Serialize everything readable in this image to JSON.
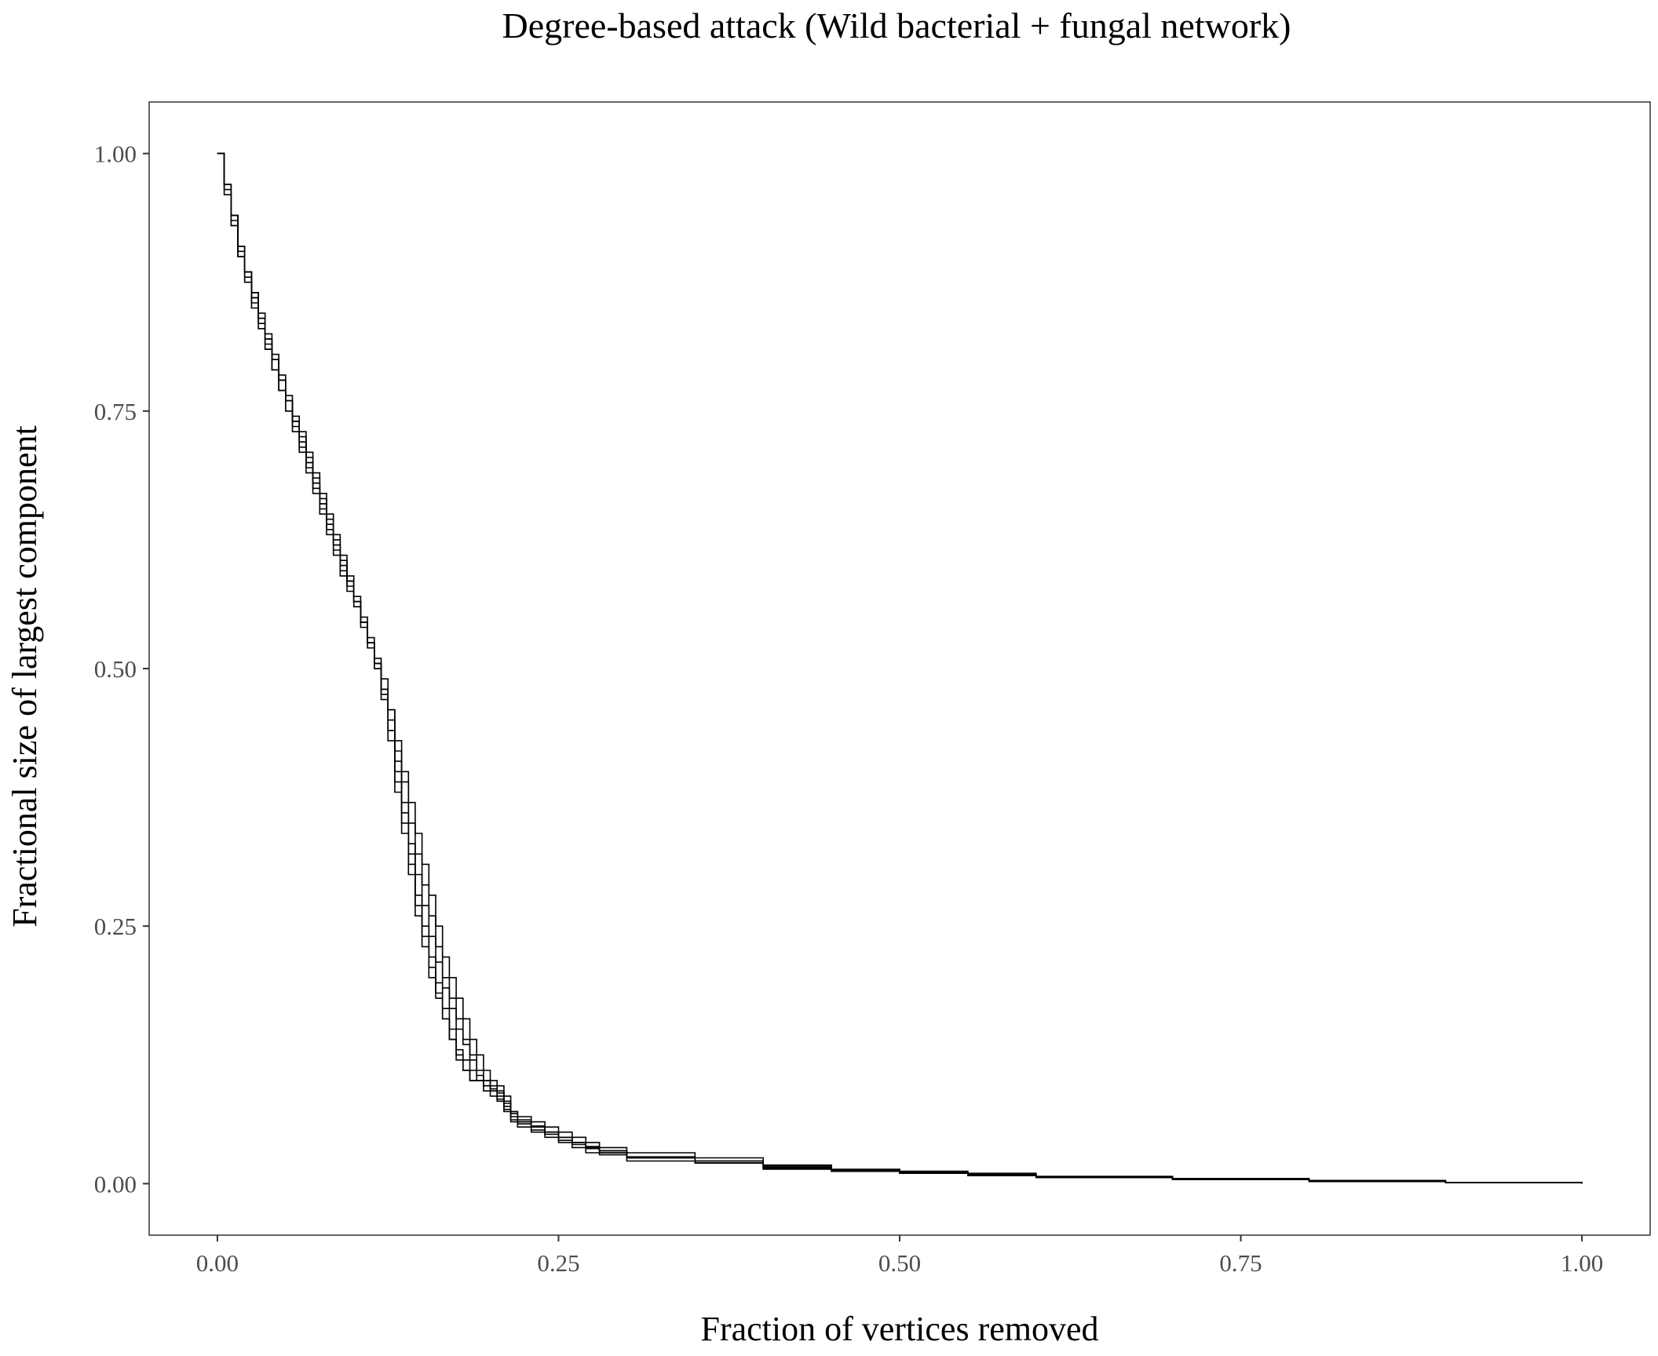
{
  "chart_data": {
    "type": "line",
    "title": "Degree-based attack (Wild bacterial + fungal network)",
    "xlabel": "Fraction of vertices removed",
    "ylabel": "Fractional size of largest component",
    "xlim": [
      -0.05,
      1.05
    ],
    "ylim": [
      -0.05,
      1.05
    ],
    "xticks": [
      0.0,
      0.25,
      0.5,
      0.75,
      1.0
    ],
    "xtick_labels": [
      "0.00",
      "0.25",
      "0.50",
      "0.75",
      "1.00"
    ],
    "yticks": [
      0.0,
      0.25,
      0.5,
      0.75,
      1.0
    ],
    "ytick_labels": [
      "0.00",
      "0.25",
      "0.50",
      "0.75",
      "1.00"
    ],
    "grid": false,
    "legend": "none",
    "line_color": "#000000",
    "series": [
      {
        "x": [
          0.0,
          0.005,
          0.01,
          0.015,
          0.02,
          0.025,
          0.03,
          0.035,
          0.04,
          0.045,
          0.05,
          0.055,
          0.06,
          0.065,
          0.07,
          0.075,
          0.08,
          0.085,
          0.09,
          0.095,
          0.1,
          0.105,
          0.11,
          0.115,
          0.12,
          0.125,
          0.13,
          0.135,
          0.14,
          0.145,
          0.15,
          0.155,
          0.16,
          0.165,
          0.17,
          0.175,
          0.18,
          0.185,
          0.19,
          0.195,
          0.2,
          0.205,
          0.21,
          0.215,
          0.22,
          0.23,
          0.24,
          0.25,
          0.26,
          0.27,
          0.28,
          0.3,
          0.35,
          0.4,
          0.45,
          0.5,
          0.55,
          0.6,
          0.7,
          0.8,
          0.9,
          1.0
        ],
        "y": [
          1.0,
          0.97,
          0.935,
          0.905,
          0.88,
          0.86,
          0.84,
          0.815,
          0.8,
          0.78,
          0.76,
          0.74,
          0.72,
          0.7,
          0.68,
          0.66,
          0.64,
          0.62,
          0.6,
          0.585,
          0.565,
          0.545,
          0.525,
          0.505,
          0.48,
          0.44,
          0.4,
          0.36,
          0.32,
          0.28,
          0.25,
          0.22,
          0.195,
          0.17,
          0.15,
          0.13,
          0.12,
          0.11,
          0.1,
          0.095,
          0.09,
          0.085,
          0.075,
          0.065,
          0.06,
          0.055,
          0.05,
          0.045,
          0.04,
          0.035,
          0.03,
          0.025,
          0.02,
          0.015,
          0.012,
          0.01,
          0.008,
          0.006,
          0.004,
          0.002,
          0.001,
          0.0
        ]
      },
      {
        "x": [
          0.0,
          0.005,
          0.01,
          0.015,
          0.02,
          0.025,
          0.03,
          0.035,
          0.04,
          0.045,
          0.05,
          0.055,
          0.06,
          0.065,
          0.07,
          0.075,
          0.08,
          0.085,
          0.09,
          0.095,
          0.1,
          0.105,
          0.11,
          0.115,
          0.12,
          0.125,
          0.13,
          0.135,
          0.14,
          0.145,
          0.15,
          0.155,
          0.16,
          0.165,
          0.17,
          0.175,
          0.18,
          0.185,
          0.19,
          0.195,
          0.2,
          0.205,
          0.21,
          0.215,
          0.22,
          0.23,
          0.24,
          0.25,
          0.26,
          0.27,
          0.28,
          0.3,
          0.35,
          0.4,
          0.45,
          0.5,
          0.55,
          0.6,
          0.7,
          0.8,
          0.9,
          1.0
        ],
        "y": [
          1.0,
          0.97,
          0.94,
          0.91,
          0.885,
          0.865,
          0.845,
          0.825,
          0.805,
          0.785,
          0.765,
          0.745,
          0.73,
          0.71,
          0.69,
          0.67,
          0.65,
          0.63,
          0.61,
          0.59,
          0.57,
          0.55,
          0.53,
          0.51,
          0.49,
          0.46,
          0.42,
          0.39,
          0.35,
          0.32,
          0.29,
          0.26,
          0.23,
          0.2,
          0.18,
          0.16,
          0.14,
          0.125,
          0.11,
          0.1,
          0.095,
          0.09,
          0.08,
          0.07,
          0.065,
          0.06,
          0.055,
          0.05,
          0.045,
          0.04,
          0.035,
          0.03,
          0.025,
          0.018,
          0.014,
          0.012,
          0.01,
          0.007,
          0.005,
          0.003,
          0.001,
          0.0
        ]
      },
      {
        "x": [
          0.0,
          0.005,
          0.01,
          0.015,
          0.02,
          0.025,
          0.03,
          0.035,
          0.04,
          0.045,
          0.05,
          0.055,
          0.06,
          0.065,
          0.07,
          0.075,
          0.08,
          0.085,
          0.09,
          0.095,
          0.1,
          0.105,
          0.11,
          0.115,
          0.12,
          0.125,
          0.13,
          0.135,
          0.14,
          0.145,
          0.15,
          0.155,
          0.16,
          0.165,
          0.17,
          0.175,
          0.18,
          0.185,
          0.19,
          0.195,
          0.2,
          0.205,
          0.21,
          0.215,
          0.22,
          0.23,
          0.24,
          0.25,
          0.26,
          0.27,
          0.28,
          0.3,
          0.35,
          0.4,
          0.45,
          0.5,
          0.55,
          0.6,
          0.7,
          0.8,
          0.9,
          1.0
        ],
        "y": [
          1.0,
          0.965,
          0.93,
          0.9,
          0.875,
          0.855,
          0.835,
          0.81,
          0.79,
          0.77,
          0.75,
          0.73,
          0.71,
          0.69,
          0.67,
          0.65,
          0.63,
          0.61,
          0.59,
          0.575,
          0.56,
          0.54,
          0.52,
          0.5,
          0.47,
          0.43,
          0.38,
          0.34,
          0.3,
          0.26,
          0.23,
          0.2,
          0.18,
          0.16,
          0.14,
          0.12,
          0.11,
          0.1,
          0.1,
          0.09,
          0.085,
          0.08,
          0.07,
          0.06,
          0.055,
          0.05,
          0.045,
          0.04,
          0.035,
          0.03,
          0.028,
          0.022,
          0.02,
          0.015,
          0.012,
          0.01,
          0.008,
          0.006,
          0.004,
          0.002,
          0.001,
          0.0
        ]
      },
      {
        "x": [
          0.0,
          0.005,
          0.01,
          0.015,
          0.02,
          0.025,
          0.03,
          0.035,
          0.04,
          0.045,
          0.05,
          0.055,
          0.06,
          0.065,
          0.07,
          0.075,
          0.08,
          0.085,
          0.09,
          0.095,
          0.1,
          0.105,
          0.11,
          0.115,
          0.12,
          0.125,
          0.13,
          0.135,
          0.14,
          0.145,
          0.15,
          0.155,
          0.16,
          0.165,
          0.17,
          0.175,
          0.18,
          0.185,
          0.19,
          0.195,
          0.2,
          0.205,
          0.21,
          0.215,
          0.22,
          0.23,
          0.24,
          0.25,
          0.26,
          0.27,
          0.28,
          0.3,
          0.35,
          0.4,
          0.45,
          0.5,
          0.55,
          0.6,
          0.7,
          0.8,
          0.9,
          1.0
        ],
        "y": [
          1.0,
          0.97,
          0.94,
          0.91,
          0.885,
          0.865,
          0.84,
          0.82,
          0.8,
          0.78,
          0.76,
          0.74,
          0.725,
          0.705,
          0.685,
          0.665,
          0.645,
          0.625,
          0.605,
          0.585,
          0.565,
          0.545,
          0.525,
          0.505,
          0.48,
          0.45,
          0.41,
          0.37,
          0.33,
          0.3,
          0.27,
          0.24,
          0.215,
          0.19,
          0.17,
          0.15,
          0.135,
          0.12,
          0.105,
          0.1,
          0.092,
          0.088,
          0.078,
          0.068,
          0.06,
          0.055,
          0.05,
          0.045,
          0.04,
          0.035,
          0.032,
          0.025,
          0.022,
          0.016,
          0.013,
          0.011,
          0.009,
          0.006,
          0.004,
          0.003,
          0.001,
          0.0
        ]
      },
      {
        "x": [
          0.0,
          0.005,
          0.01,
          0.015,
          0.02,
          0.025,
          0.03,
          0.035,
          0.04,
          0.045,
          0.05,
          0.055,
          0.06,
          0.065,
          0.07,
          0.075,
          0.08,
          0.085,
          0.09,
          0.095,
          0.1,
          0.105,
          0.11,
          0.115,
          0.12,
          0.125,
          0.13,
          0.135,
          0.14,
          0.145,
          0.15,
          0.155,
          0.16,
          0.165,
          0.17,
          0.175,
          0.18,
          0.185,
          0.19,
          0.195,
          0.2,
          0.205,
          0.21,
          0.215,
          0.22,
          0.23,
          0.24,
          0.25,
          0.26,
          0.27,
          0.28,
          0.3,
          0.35,
          0.4,
          0.45,
          0.5,
          0.55,
          0.6,
          0.7,
          0.8,
          0.9,
          1.0
        ],
        "y": [
          1.0,
          0.96,
          0.93,
          0.9,
          0.875,
          0.85,
          0.83,
          0.81,
          0.79,
          0.77,
          0.75,
          0.735,
          0.715,
          0.695,
          0.675,
          0.655,
          0.635,
          0.615,
          0.595,
          0.58,
          0.565,
          0.545,
          0.525,
          0.5,
          0.475,
          0.44,
          0.39,
          0.35,
          0.31,
          0.27,
          0.24,
          0.21,
          0.185,
          0.16,
          0.14,
          0.125,
          0.11,
          0.1,
          0.1,
          0.095,
          0.09,
          0.082,
          0.072,
          0.062,
          0.058,
          0.052,
          0.048,
          0.042,
          0.038,
          0.034,
          0.03,
          0.025,
          0.02,
          0.014,
          0.012,
          0.01,
          0.008,
          0.006,
          0.004,
          0.002,
          0.001,
          0.0
        ]
      },
      {
        "x": [
          0.0,
          0.005,
          0.01,
          0.015,
          0.02,
          0.025,
          0.03,
          0.035,
          0.04,
          0.045,
          0.05,
          0.055,
          0.06,
          0.065,
          0.07,
          0.075,
          0.08,
          0.085,
          0.09,
          0.095,
          0.1,
          0.105,
          0.11,
          0.115,
          0.12,
          0.125,
          0.13,
          0.135,
          0.14,
          0.145,
          0.15,
          0.155,
          0.16,
          0.165,
          0.17,
          0.175,
          0.18,
          0.185,
          0.19,
          0.195,
          0.2,
          0.205,
          0.21,
          0.215,
          0.22,
          0.23,
          0.24,
          0.25,
          0.26,
          0.27,
          0.28,
          0.3,
          0.35,
          0.4,
          0.45,
          0.5,
          0.55,
          0.6,
          0.7,
          0.8,
          0.9,
          1.0
        ],
        "y": [
          1.0,
          0.97,
          0.94,
          0.91,
          0.885,
          0.86,
          0.84,
          0.82,
          0.8,
          0.78,
          0.76,
          0.74,
          0.72,
          0.7,
          0.68,
          0.66,
          0.64,
          0.62,
          0.6,
          0.585,
          0.565,
          0.545,
          0.525,
          0.505,
          0.48,
          0.46,
          0.43,
          0.4,
          0.37,
          0.34,
          0.31,
          0.28,
          0.25,
          0.22,
          0.2,
          0.18,
          0.16,
          0.14,
          0.125,
          0.11,
          0.1,
          0.095,
          0.085,
          0.07,
          0.062,
          0.056,
          0.05,
          0.045,
          0.04,
          0.036,
          0.032,
          0.026,
          0.022,
          0.017,
          0.013,
          0.011,
          0.009,
          0.007,
          0.005,
          0.003,
          0.001,
          0.0
        ]
      }
    ]
  }
}
